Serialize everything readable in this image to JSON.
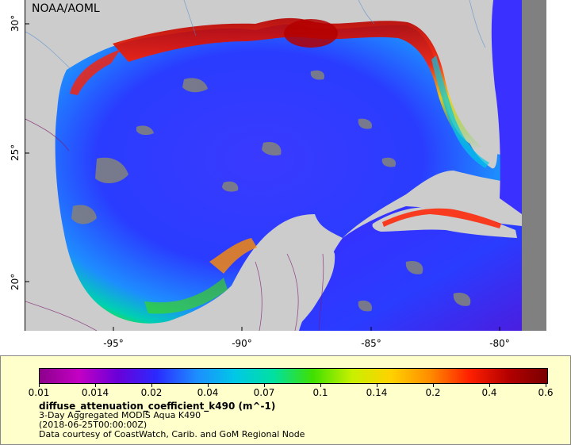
{
  "credit": "NOAA/AOML",
  "axes": {
    "x_ticks": [
      "-95°",
      "-90°",
      "-85°",
      "-80°"
    ],
    "y_ticks": [
      "30°",
      "25°",
      "20°"
    ]
  },
  "legend": {
    "ticks": [
      "0.01",
      "0.014",
      "0.02",
      "0.04",
      "0.07",
      "0.1",
      "0.14",
      "0.2",
      "0.4",
      "0.6"
    ],
    "variable": "diffuse_attenuation_coefficient_k490 (m^-1)",
    "lines": [
      "3-Day Aggregated MODIS Aqua K490",
      "(2018-06-25T00:00:00Z)",
      "Data courtesy of CoastWatch, Carib. and GoM Regional Node"
    ]
  },
  "colors": {
    "land": "#cccccc",
    "nodata": "#808080",
    "legend_bg": "#ffffcc",
    "colormap": [
      "#8c008c",
      "#c400c4",
      "#6a00d8",
      "#2a2aff",
      "#1e8cff",
      "#00c8e6",
      "#00e0a0",
      "#40e000",
      "#c8f000",
      "#ffd200",
      "#ff8c00",
      "#ff2000",
      "#b40000",
      "#7a0000"
    ]
  }
}
